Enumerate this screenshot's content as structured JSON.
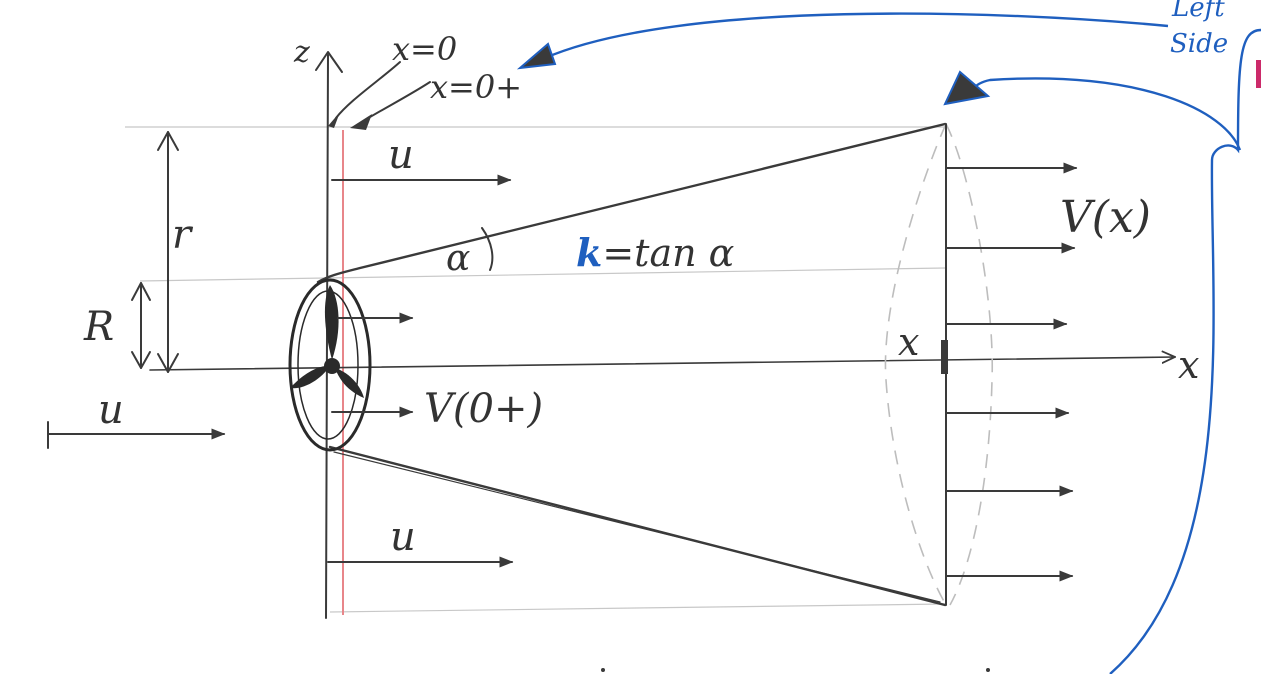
{
  "labels": {
    "x0": "x=0",
    "x0plus": "x=0+",
    "z_axis": "z",
    "u_top": "u",
    "u_left": "u",
    "u_bottom": "u",
    "r": "r",
    "R": "R",
    "alpha": "α",
    "k_letter": "k",
    "k_eq": "=tan α",
    "vx": "V(x)",
    "v0plus": "V(0+)",
    "x_mark": "x",
    "x_axis": "x",
    "left_side_1": "Left",
    "left_side_2": "Side"
  },
  "colors": {
    "ink": "#3a3a3a",
    "blue": "#1f5fbf",
    "red_line": "#e8868a",
    "magenta": "#cc2a6a"
  }
}
